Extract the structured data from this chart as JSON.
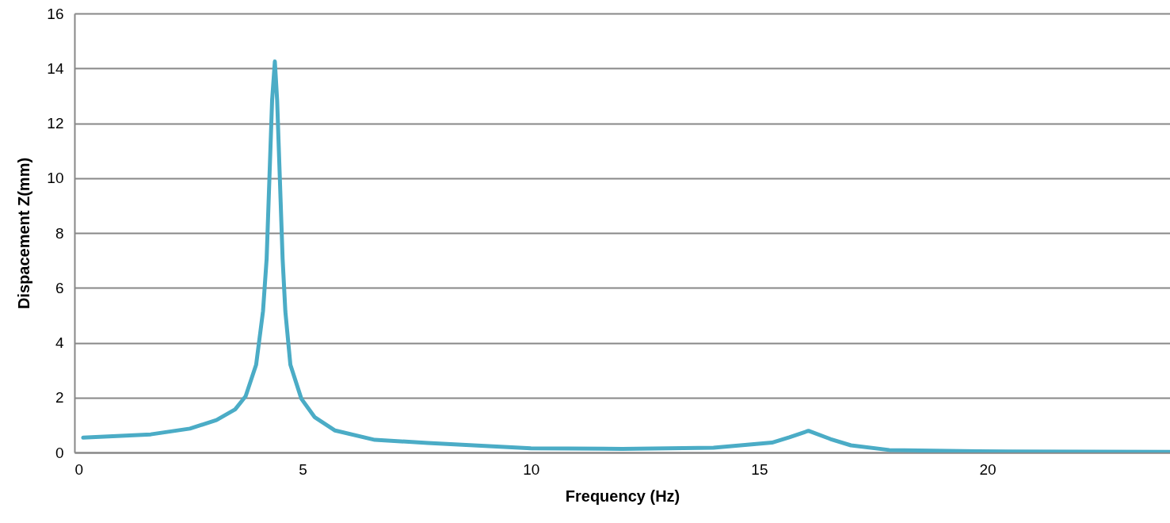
{
  "chart_data": {
    "type": "line",
    "xlabel": "Frequency (Hz)",
    "ylabel": "Dispacement Z(mm)",
    "xlim": [
      0,
      24
    ],
    "xticks": [
      0,
      5,
      10,
      15,
      20
    ],
    "ylim": [
      0,
      16
    ],
    "yticks": [
      0,
      2,
      4,
      6,
      8,
      10,
      12,
      14,
      16
    ],
    "grid": "y",
    "marker": "none",
    "line_style": "solid",
    "series": [
      {
        "color": "#4bacc6",
        "x": [
          0.19,
          1.67,
          2.53,
          3.11,
          3.52,
          3.75,
          3.98,
          4.13,
          4.21,
          4.27,
          4.33,
          4.39,
          4.44,
          4.5,
          4.56,
          4.62,
          4.73,
          4.97,
          5.26,
          5.71,
          6.58,
          7.74,
          10,
          12,
          14,
          15.28,
          15.66,
          16.08,
          16.56,
          17.01,
          17.85,
          19.78,
          24
        ],
        "values": [
          0.54,
          0.66,
          0.87,
          1.18,
          1.57,
          2.05,
          3.2,
          5.14,
          7.06,
          9.95,
          12.84,
          14.25,
          12.84,
          9.95,
          7.06,
          5.14,
          3.2,
          1.96,
          1.29,
          0.8,
          0.46,
          0.35,
          0.15,
          0.13,
          0.17,
          0.36,
          0.55,
          0.79,
          0.49,
          0.26,
          0.09,
          0.04,
          0.02
        ]
      }
    ]
  }
}
